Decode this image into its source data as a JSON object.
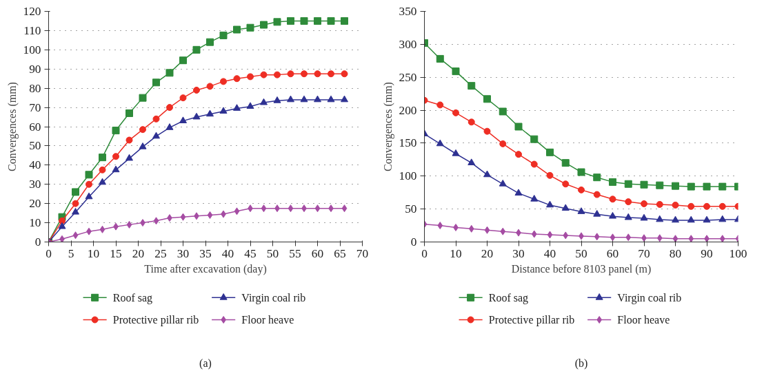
{
  "chart_data": [
    {
      "type": "line",
      "xlabel": "Time after excavation (day)",
      "ylabel": "Convergences (mm)",
      "x": [
        0,
        3,
        6,
        9,
        12,
        15,
        18,
        21,
        24,
        27,
        30,
        33,
        36,
        39,
        42,
        45,
        48,
        51,
        54,
        57,
        60,
        63,
        66
      ],
      "xlim": [
        0,
        70
      ],
      "xticks": [
        0,
        5,
        10,
        15,
        20,
        25,
        30,
        35,
        40,
        45,
        50,
        55,
        60,
        65,
        70
      ],
      "ylim": [
        0,
        120
      ],
      "yticks": [
        0,
        10,
        20,
        30,
        40,
        50,
        60,
        70,
        80,
        90,
        100,
        110,
        120
      ],
      "grid": "y",
      "legend": "bottom",
      "line_style": "solid",
      "annotations": [
        "(a)"
      ],
      "series": [
        {
          "name": "Roof sag",
          "color": "#2e8b3a",
          "marker": "square",
          "values": [
            0,
            13,
            26,
            35,
            44,
            58,
            67,
            75,
            83,
            88,
            94.5,
            100,
            104,
            107.5,
            110.5,
            111.5,
            113,
            114.5,
            115,
            115,
            115,
            115,
            115
          ]
        },
        {
          "name": "Protective pillar rib",
          "color": "#ee2e24",
          "marker": "circle",
          "values": [
            0,
            11,
            20,
            30,
            37.5,
            44.5,
            53,
            58.5,
            64,
            70,
            75,
            79,
            81,
            83.5,
            85,
            86,
            87,
            87,
            87.5,
            87.5,
            87.5,
            87.5,
            87.5
          ]
        },
        {
          "name": "Virgin coal rib",
          "color": "#2e3192",
          "marker": "triangle",
          "values": [
            0,
            8,
            15.5,
            23.5,
            31,
            37.5,
            43.5,
            49.5,
            55,
            59.5,
            63,
            65,
            66.5,
            68,
            69.5,
            70.5,
            72.5,
            73.5,
            74,
            74,
            74,
            74,
            74
          ]
        },
        {
          "name": "Floor heave",
          "color": "#a54ca3",
          "marker": "diamond",
          "values": [
            0,
            1.5,
            3.5,
            5.5,
            6.5,
            8,
            9,
            10,
            11,
            12.5,
            13,
            13.5,
            14,
            14.5,
            16,
            17.5,
            17.5,
            17.5,
            17.5,
            17.5,
            17.5,
            17.5,
            17.5
          ]
        }
      ]
    },
    {
      "type": "line",
      "xlabel": "Distance before 8103 panel (m)",
      "ylabel": "Convergences (mm)",
      "x": [
        0,
        5,
        10,
        15,
        20,
        25,
        30,
        35,
        40,
        45,
        50,
        55,
        60,
        65,
        70,
        75,
        80,
        85,
        90,
        95,
        100
      ],
      "xlim": [
        0,
        100
      ],
      "xticks": [
        0,
        10,
        20,
        30,
        40,
        50,
        60,
        70,
        80,
        90,
        100
      ],
      "ylim": [
        0,
        350
      ],
      "yticks": [
        0,
        50,
        100,
        150,
        200,
        250,
        300,
        350
      ],
      "grid": "y",
      "legend": "bottom",
      "line_style": "solid",
      "annotations": [
        "(b)"
      ],
      "series": [
        {
          "name": "Roof sag",
          "color": "#2e8b3a",
          "marker": "square",
          "values": [
            302,
            278,
            259,
            237,
            217,
            198,
            175,
            156,
            136,
            120,
            106,
            98,
            91,
            88,
            87,
            86,
            85,
            84,
            84,
            84,
            84
          ]
        },
        {
          "name": "Protective pillar rib",
          "color": "#ee2e24",
          "marker": "circle",
          "values": [
            215,
            208,
            196,
            182,
            168,
            149,
            133,
            118,
            101,
            88,
            79,
            72,
            65,
            61,
            58,
            57,
            56,
            54,
            54,
            54,
            54
          ]
        },
        {
          "name": "Virgin coal rib",
          "color": "#2e3192",
          "marker": "triangle",
          "values": [
            164,
            149,
            134,
            120,
            102,
            88,
            74,
            65,
            56,
            51,
            46,
            42,
            39,
            37,
            36,
            34,
            33,
            33,
            33,
            34,
            34
          ]
        },
        {
          "name": "Floor heave",
          "color": "#a54ca3",
          "marker": "diamond",
          "values": [
            27,
            25,
            22,
            20,
            18,
            16,
            14,
            12,
            11,
            10,
            9,
            8,
            7,
            7,
            6,
            6,
            5,
            5,
            5,
            5,
            5
          ]
        }
      ]
    }
  ]
}
